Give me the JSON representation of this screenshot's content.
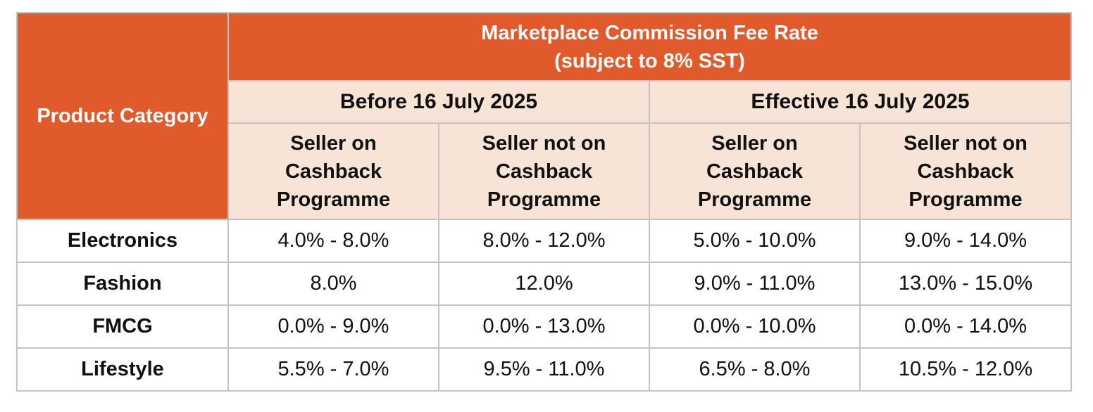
{
  "table": {
    "category_header": "Product Category",
    "main_header_line1": "Marketplace Commission Fee Rate",
    "main_header_line2": "(subject to 8% SST)",
    "periods": [
      {
        "label": "Before 16 July 2025"
      },
      {
        "label": "Effective 16 July 2025"
      }
    ],
    "seller_columns": [
      {
        "line1": "Seller on",
        "line2": "Cashback",
        "line3": "Programme"
      },
      {
        "line1": "Seller not on",
        "line2": "Cashback",
        "line3": "Programme"
      },
      {
        "line1": "Seller on",
        "line2": "Cashback",
        "line3": "Programme"
      },
      {
        "line1": "Seller not on",
        "line2": "Cashback",
        "line3": "Programme"
      }
    ],
    "rows": [
      {
        "category": "Electronics",
        "values": [
          "4.0% - 8.0%",
          "8.0% - 12.0%",
          "5.0% - 10.0%",
          "9.0% - 14.0%"
        ]
      },
      {
        "category": "Fashion",
        "values": [
          "8.0%",
          "12.0%",
          "9.0% - 11.0%",
          "13.0% - 15.0%"
        ]
      },
      {
        "category": "FMCG",
        "values": [
          "0.0% - 9.0%",
          "0.0% - 13.0%",
          "0.0% - 10.0%",
          "0.0% - 14.0%"
        ]
      },
      {
        "category": "Lifestyle",
        "values": [
          "5.5% - 7.0%",
          "9.5% - 11.0%",
          "6.5% - 8.0%",
          "10.5% - 12.0%"
        ]
      }
    ]
  },
  "colors": {
    "header_orange": "#e05a2b",
    "subheader_peach": "#f8e4d6",
    "border_gray": "#c4c4c4"
  }
}
